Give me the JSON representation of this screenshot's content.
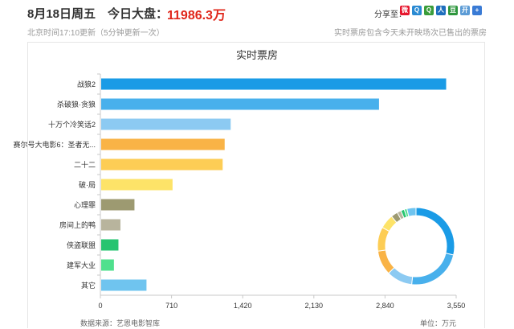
{
  "header": {
    "date": "8月18日",
    "weekday": "周五",
    "dapan_label": "今日大盘：",
    "dapan_value": "11986.3万",
    "share_label": "分享至：",
    "share_icons": [
      {
        "name": "weibo-icon",
        "glyph": "微",
        "color": "#e6162d"
      },
      {
        "name": "qzone-icon",
        "glyph": "Q",
        "color": "#2a8ad2"
      },
      {
        "name": "qqweibo-icon",
        "glyph": "Q",
        "color": "#3a9d3a"
      },
      {
        "name": "renren-icon",
        "glyph": "人",
        "color": "#1f6fbd"
      },
      {
        "name": "douban-icon",
        "glyph": "豆",
        "color": "#2e963d"
      },
      {
        "name": "kaixin-icon",
        "glyph": "开",
        "color": "#5b9bd5"
      },
      {
        "name": "more-icon",
        "glyph": "+",
        "color": "#3a7bd5"
      }
    ],
    "update_note": "北京时间17:10更新（5分钟更新一次）",
    "right_note": "实时票房包含今天未开映场次已售出的票房"
  },
  "footer": {
    "source": "数据来源：艺恩电影智库",
    "unit": "单位：万元"
  },
  "chart_data": {
    "type": "bar",
    "orientation": "horizontal",
    "title": "实时票房",
    "categories": [
      "战狼2",
      "杀破狼·贪狼",
      "十万个冷笑话2",
      "赛尔号大电影6：圣者无...",
      "二十二",
      "破·局",
      "心理罪",
      "房间上的鸭",
      "侠盗联盟",
      "建军大业",
      "其它"
    ],
    "values": [
      3450,
      2780,
      1300,
      1240,
      1220,
      720,
      340,
      200,
      180,
      135,
      460
    ],
    "colors": [
      "#1a9be6",
      "#48b0ec",
      "#8ccaf2",
      "#f9b346",
      "#fdcd55",
      "#fde368",
      "#9d9a71",
      "#b8b49d",
      "#27c470",
      "#4fe08d",
      "#6fc4ef"
    ],
    "xlim": [
      0,
      3550
    ],
    "xticks": [
      0,
      710,
      1420,
      2130,
      2840,
      3550
    ],
    "xtick_labels": [
      "0",
      "710",
      "1,420",
      "2,130",
      "2,840",
      "3,550"
    ],
    "grid": false,
    "inset": {
      "type": "donut",
      "values": [
        3450,
        2780,
        1300,
        1240,
        1220,
        720,
        340,
        200,
        180,
        135,
        460
      ],
      "colors": [
        "#1a9be6",
        "#48b0ec",
        "#8ccaf2",
        "#f9b346",
        "#fdcd55",
        "#fde368",
        "#9d9a71",
        "#b8b49d",
        "#27c470",
        "#4fe08d",
        "#6fc4ef"
      ],
      "start_angle_deg": 90
    }
  }
}
